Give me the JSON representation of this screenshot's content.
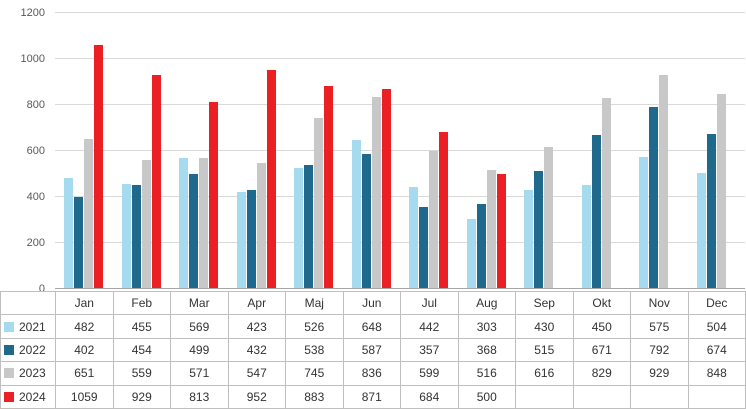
{
  "chart_data": {
    "type": "bar",
    "title": "",
    "xlabel": "",
    "ylabel": "",
    "categories": [
      "Jan",
      "Feb",
      "Mar",
      "Apr",
      "Maj",
      "Jun",
      "Jul",
      "Aug",
      "Sep",
      "Okt",
      "Nov",
      "Dec"
    ],
    "series": [
      {
        "name": "2021",
        "color": "#a6daee",
        "values": [
          482,
          455,
          569,
          423,
          526,
          648,
          442,
          303,
          430,
          450,
          575,
          504
        ]
      },
      {
        "name": "2022",
        "color": "#1f6a8c",
        "values": [
          402,
          454,
          499,
          432,
          538,
          587,
          357,
          368,
          515,
          671,
          792,
          674
        ]
      },
      {
        "name": "2023",
        "color": "#c8c8c8",
        "values": [
          651,
          559,
          571,
          547,
          745,
          836,
          599,
          516,
          616,
          829,
          929,
          848
        ]
      },
      {
        "name": "2024",
        "color": "#eb2024",
        "values": [
          1059,
          929,
          813,
          952,
          883,
          871,
          684,
          500,
          null,
          null,
          null,
          null
        ]
      }
    ],
    "ylim": [
      0,
      1200
    ],
    "ytick_step": 200,
    "yticks": [
      0,
      200,
      400,
      600,
      800,
      1000,
      1200
    ],
    "grid": true,
    "legend_position": "data-table",
    "colors": {
      "gridline": "#d9d9d9",
      "axis_line": "#a6a6a6",
      "tick_label": "#595959",
      "table_border": "#bfbfbf",
      "table_text": "#333333"
    }
  }
}
